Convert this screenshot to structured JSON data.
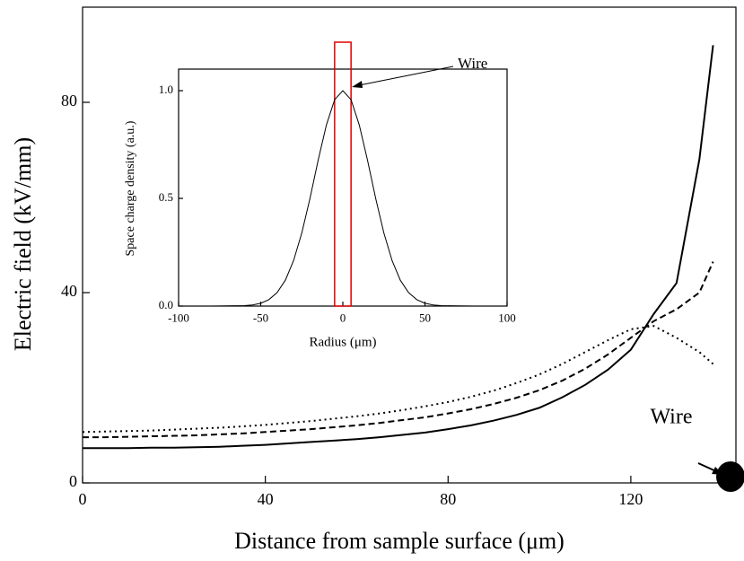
{
  "chart_data": [
    {
      "type": "line",
      "y_label": "Electric field (kV/mm)",
      "x_label": "Distance from sample surface (μm)",
      "annotation": "Wire",
      "xlim": [
        0,
        143
      ],
      "ylim": [
        0,
        100
      ],
      "xticks": [
        0,
        40,
        80,
        120
      ],
      "yticks": [
        0,
        40,
        80
      ],
      "x": [
        0,
        5,
        10,
        15,
        20,
        25,
        30,
        35,
        40,
        45,
        50,
        55,
        60,
        65,
        70,
        75,
        80,
        85,
        90,
        95,
        100,
        105,
        110,
        115,
        120,
        125,
        130,
        135,
        138
      ],
      "series": [
        {
          "color": "#000000",
          "linestyle": "solid",
          "values": [
            7.3,
            7.3,
            7.3,
            7.4,
            7.4,
            7.5,
            7.6,
            7.8,
            8.0,
            8.3,
            8.6,
            8.9,
            9.2,
            9.6,
            10.1,
            10.6,
            11.3,
            12.1,
            13.1,
            14.3,
            15.8,
            18.0,
            20.6,
            23.8,
            28.0,
            35.5,
            42.0,
            68.0,
            92.0
          ]
        },
        {
          "color": "#000000",
          "linestyle": "dashed",
          "values": [
            9.6,
            9.6,
            9.7,
            9.8,
            9.9,
            10.0,
            10.2,
            10.4,
            10.7,
            11.0,
            11.3,
            11.7,
            12.1,
            12.6,
            13.2,
            13.8,
            14.6,
            15.5,
            16.6,
            17.9,
            19.5,
            21.5,
            24.0,
            27.0,
            30.5,
            34.0,
            36.5,
            40.0,
            46.5
          ]
        },
        {
          "color": "#000000",
          "linestyle": "dotted",
          "values": [
            10.7,
            10.8,
            10.9,
            11.0,
            11.2,
            11.4,
            11.6,
            11.9,
            12.2,
            12.6,
            13.0,
            13.5,
            14.0,
            14.6,
            15.3,
            16.1,
            17.0,
            18.1,
            19.4,
            21.0,
            22.8,
            25.0,
            27.5,
            30.0,
            32.3,
            33.0,
            30.5,
            27.5,
            25.0
          ]
        }
      ]
    },
    {
      "type": "line",
      "y_label": "Space charge density (a.u.)",
      "x_label": "Radius (μm)",
      "annotation": "Wire",
      "wire_box": [
        -5,
        5
      ],
      "wire_color": "#e00000",
      "xlim": [
        -100,
        100
      ],
      "ylim": [
        0,
        1.1
      ],
      "xticks": [
        -100,
        -50,
        0,
        50,
        100
      ],
      "yticks": [
        {
          "value": 0,
          "label": "0.0"
        },
        {
          "value": 0.5,
          "label": "0.5"
        },
        {
          "value": 1,
          "label": "1.0"
        }
      ],
      "x": [
        -100,
        -80,
        -60,
        -55,
        -50,
        -45,
        -40,
        -35,
        -30,
        -25,
        -20,
        -15,
        -10,
        -5,
        0,
        5,
        10,
        15,
        20,
        25,
        30,
        35,
        40,
        45,
        50,
        55,
        60,
        80,
        100
      ],
      "series": [
        {
          "color": "#000000",
          "linestyle": "solid",
          "values": [
            0,
            0,
            0.002,
            0.005,
            0.013,
            0.03,
            0.063,
            0.12,
            0.211,
            0.339,
            0.5,
            0.678,
            0.841,
            0.958,
            1,
            0.958,
            0.841,
            0.678,
            0.5,
            0.339,
            0.211,
            0.12,
            0.063,
            0.03,
            0.013,
            0.005,
            0.002,
            0,
            0
          ]
        }
      ]
    }
  ]
}
